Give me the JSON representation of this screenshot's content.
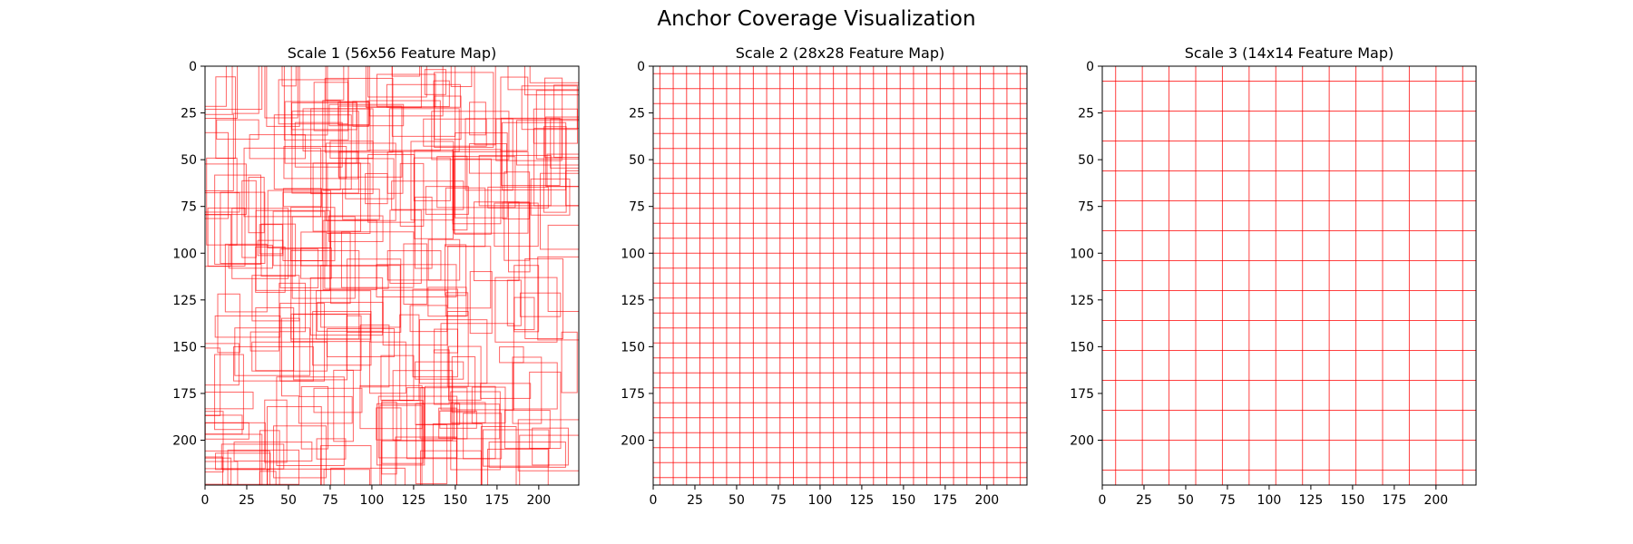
{
  "figure": {
    "title": "Anchor Coverage Visualization"
  },
  "chart_data": [
    {
      "type": "scatter",
      "title": "Scale 1 (56x56 Feature Map)",
      "xlim": [
        0,
        224
      ],
      "ylim": [
        224,
        0
      ],
      "y_inverted": true,
      "xticks": [
        0,
        25,
        50,
        75,
        100,
        125,
        150,
        175,
        200
      ],
      "yticks": [
        0,
        25,
        50,
        75,
        100,
        125,
        150,
        175,
        200
      ],
      "grid": false,
      "box_color": "#ff0000",
      "box_seed": 7,
      "box_count": 260
    },
    {
      "type": "scatter",
      "title": "Scale 2 (28x28 Feature Map)",
      "xlim": [
        0,
        224
      ],
      "ylim": [
        224,
        0
      ],
      "y_inverted": true,
      "xticks": [
        0,
        25,
        50,
        75,
        100,
        125,
        150,
        175,
        200
      ],
      "yticks": [
        0,
        25,
        50,
        75,
        100,
        125,
        150,
        175,
        200
      ],
      "grid": false,
      "box_color": "#ff0000",
      "vertical_lines": [
        4,
        12,
        20,
        28,
        36,
        44,
        52,
        60,
        68,
        76,
        84,
        92,
        100,
        108,
        116,
        124,
        132,
        140,
        148,
        156,
        164,
        172,
        180,
        188,
        196,
        204,
        212,
        220
      ],
      "horizontal_lines": [
        4,
        12,
        20,
        28,
        36,
        44,
        52,
        60,
        68,
        76,
        84,
        92,
        100,
        108,
        116,
        124,
        132,
        140,
        148,
        156,
        164,
        172,
        180,
        188,
        196,
        204,
        212,
        220
      ]
    },
    {
      "type": "scatter",
      "title": "Scale 3 (14x14 Feature Map)",
      "xlim": [
        0,
        224
      ],
      "ylim": [
        224,
        0
      ],
      "y_inverted": true,
      "xticks": [
        0,
        25,
        50,
        75,
        100,
        125,
        150,
        175,
        200
      ],
      "yticks": [
        0,
        25,
        50,
        75,
        100,
        125,
        150,
        175,
        200
      ],
      "grid": false,
      "box_color": "#ff0000",
      "vertical_lines": [
        8,
        24,
        40,
        56,
        72,
        88,
        104,
        120,
        136,
        152,
        168,
        184,
        200,
        216
      ],
      "horizontal_lines": [
        8,
        24,
        40,
        56,
        72,
        88,
        104,
        120,
        136,
        152,
        168,
        184,
        200,
        216
      ]
    }
  ]
}
